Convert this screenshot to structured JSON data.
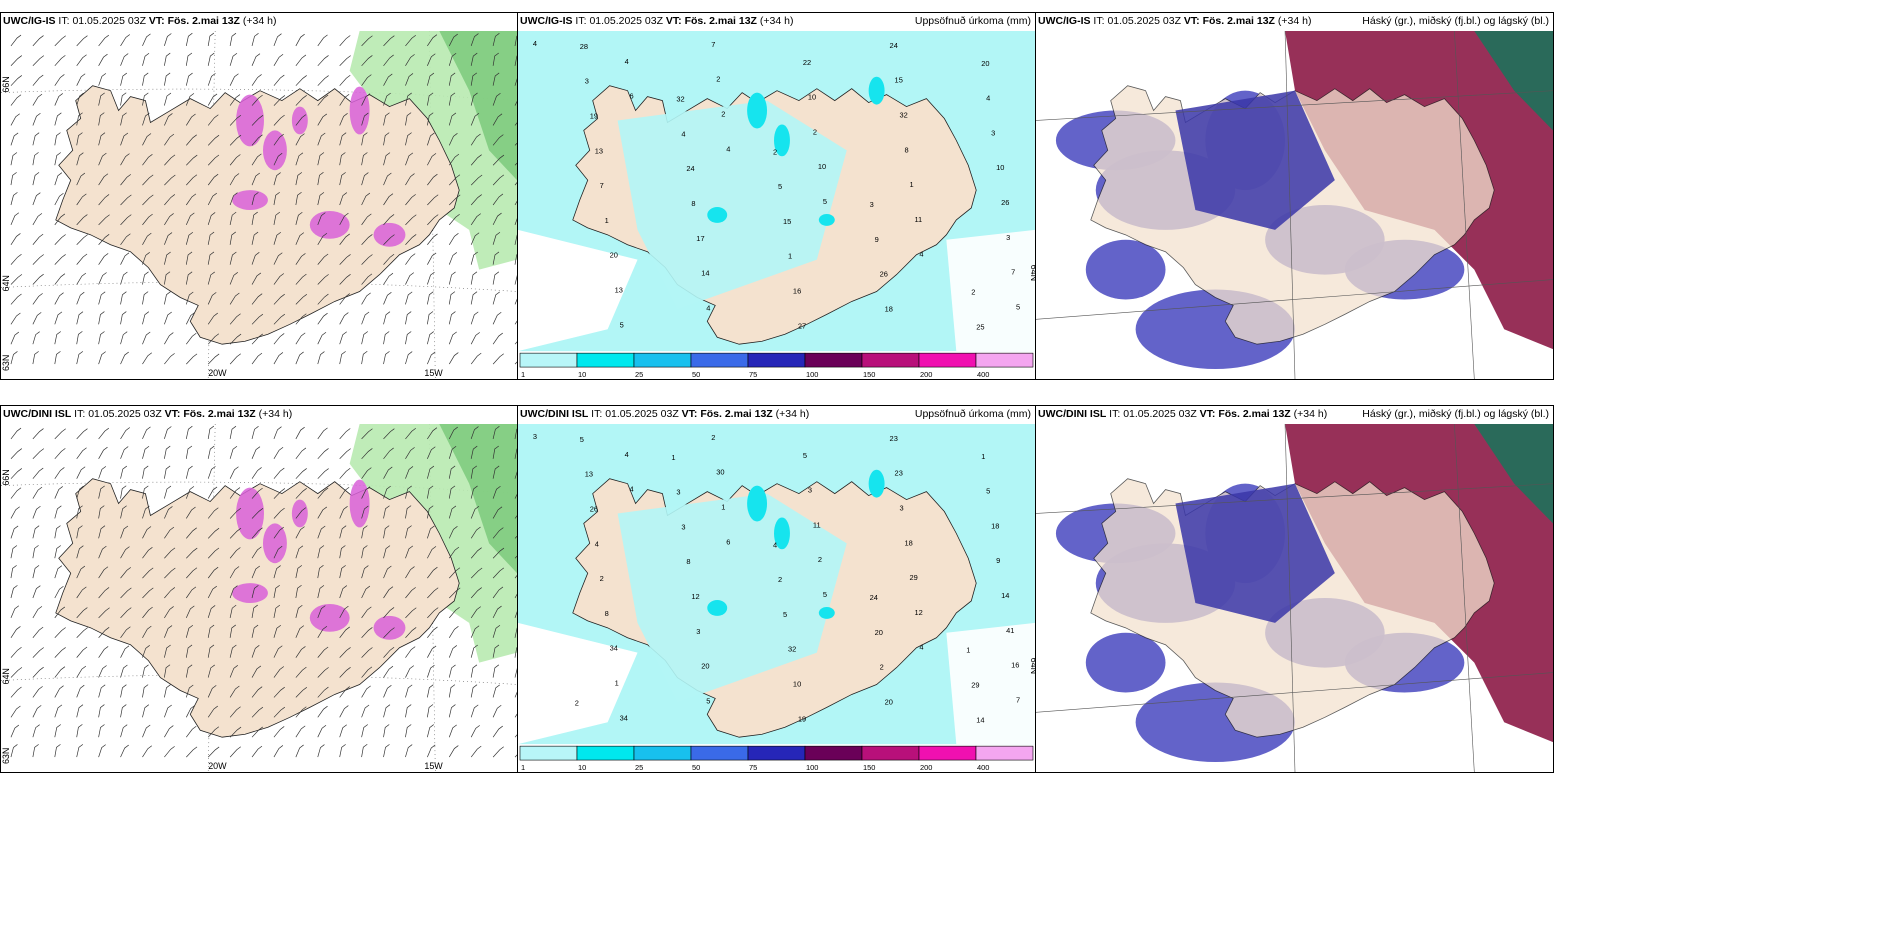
{
  "panels": [
    {
      "id": "p1",
      "model": "UWC/IG-IS",
      "right_title": "",
      "type": "wind",
      "lon_labels": [
        "20W",
        "15W"
      ],
      "lat_labels": [
        "66N",
        "64N",
        "63N"
      ]
    },
    {
      "id": "p2",
      "model": "UWC/IG-IS",
      "right_title": "Uppsöfnuð úrkoma (mm)",
      "type": "precip",
      "numbers": [
        "4",
        "6",
        "4",
        "5",
        "4",
        "5",
        "4",
        "2",
        "10",
        "11",
        "7",
        "5",
        "2",
        "2",
        "1",
        "3",
        "13",
        "7",
        "10",
        "8",
        "26",
        "20",
        "4",
        "22",
        "32",
        "10",
        "1",
        "14",
        "27",
        "15",
        "3",
        "7",
        "17",
        "16",
        "24",
        "4",
        "13",
        "8",
        "1",
        "18",
        "20",
        "19",
        "24",
        "15",
        "26",
        "25",
        "3",
        "4",
        "5",
        "9",
        "2",
        "28",
        "32",
        "2",
        "3"
      ],
      "lat_labels": [
        "64N"
      ]
    },
    {
      "id": "p3",
      "model": "UWC/IG-IS",
      "right_title": "Háský (gr.), miðský (fj.bl.) og lágský (bl.)",
      "type": "cloud"
    },
    {
      "id": "p4",
      "model": "UWC/DINI ISL",
      "right_title": "",
      "type": "wind",
      "lon_labels": [
        "20W",
        "15W"
      ],
      "lat_labels": [
        "66N",
        "64N",
        "63N"
      ]
    },
    {
      "id": "p5",
      "model": "UWC/DINI ISL",
      "right_title": "Uppsöfnuð úrkoma (mm)",
      "type": "precip",
      "numbers": [
        "3",
        "4",
        "6",
        "5",
        "4",
        "7",
        "4",
        "1",
        "2",
        "12",
        "16",
        "34",
        "30",
        "11",
        "29",
        "41",
        "1",
        "2",
        "3",
        "18",
        "14",
        "34",
        "5",
        "5",
        "3",
        "9",
        "8",
        "20",
        "19",
        "23",
        "18",
        "2",
        "3",
        "10",
        "23",
        "5",
        "4",
        "12",
        "32",
        "20",
        "1",
        "26",
        "8",
        "5",
        "2",
        "14",
        "13",
        "3",
        "2",
        "20",
        "29",
        "5",
        "3",
        "4",
        "24",
        "1",
        "2",
        "1"
      ],
      "lat_labels": [
        "64N"
      ]
    },
    {
      "id": "p6",
      "model": "UWC/DINI ISL",
      "right_title": "Háský (gr.), miðský (fj.bl.) og lágský (bl.)",
      "type": "cloud"
    }
  ],
  "header_common": {
    "it_label": "IT:",
    "it_value": "01.05.2025 03Z",
    "vt_label": "VT:",
    "vt_value": "Fös. 2.mai 13Z",
    "lead": "(+34 h)"
  },
  "precip_scale": {
    "ticks": [
      "1",
      "10",
      "25",
      "50",
      "75",
      "100",
      "150",
      "200",
      "400"
    ],
    "colors": [
      "#b8f6f8",
      "#00e8ee",
      "#18c0ee",
      "#3a6ae8",
      "#2626b8",
      "#6a0058",
      "#b8107a",
      "#f010b0",
      "#f4a6f0"
    ]
  },
  "colors": {
    "land": "#f4e2cf",
    "precip_light": "#b2f6f6",
    "precip_cyan": "#16e4ee",
    "wind_green": "#b8eab0",
    "wind_green_dark": "#78c878",
    "magenta": "#d860d8",
    "cloud_low": "#5656c4",
    "cloud_mid": "#3a36a8",
    "cloud_high": "#8c1a46",
    "cloud_light_blue": "#5aa0ee",
    "teal": "#2a6a5a"
  }
}
